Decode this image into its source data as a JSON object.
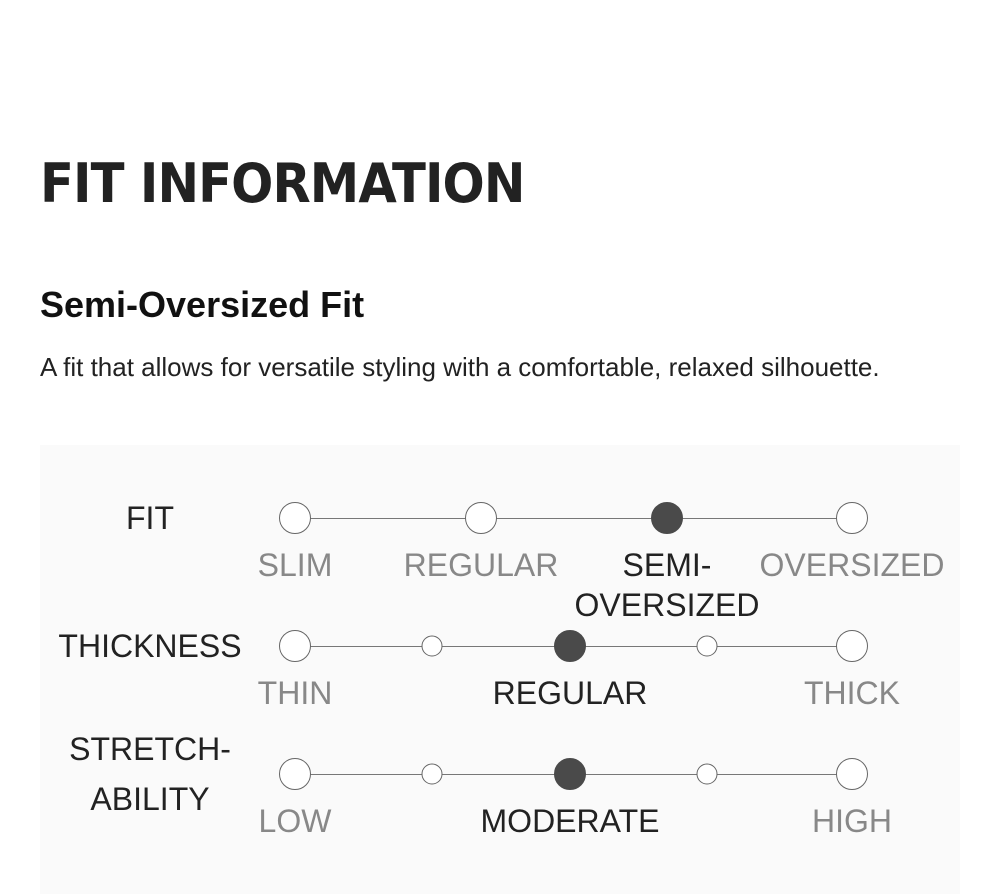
{
  "title": "FIT INFORMATION",
  "fit_name": "Semi-Oversized Fit",
  "description": "A fit that allows for versatile styling with a comfortable, relaxed silhouette.",
  "colors": {
    "panel": "#fafafa",
    "selected": "#4a4a4a",
    "unselected_label": "#888888"
  },
  "scales": [
    {
      "label": "FIT",
      "selected": "SEMI-OVERSIZED",
      "options": [
        "SLIM",
        "REGULAR",
        "SEMI-\nOVERSIZED",
        "OVERSIZED"
      ]
    },
    {
      "label": "THICKNESS",
      "selected": "REGULAR",
      "options": [
        "THIN",
        "REGULAR",
        "THICK"
      ]
    },
    {
      "label": "STRETCH-\nABILITY",
      "selected": "MODERATE",
      "options": [
        "LOW",
        "MODERATE",
        "HIGH"
      ]
    }
  ]
}
